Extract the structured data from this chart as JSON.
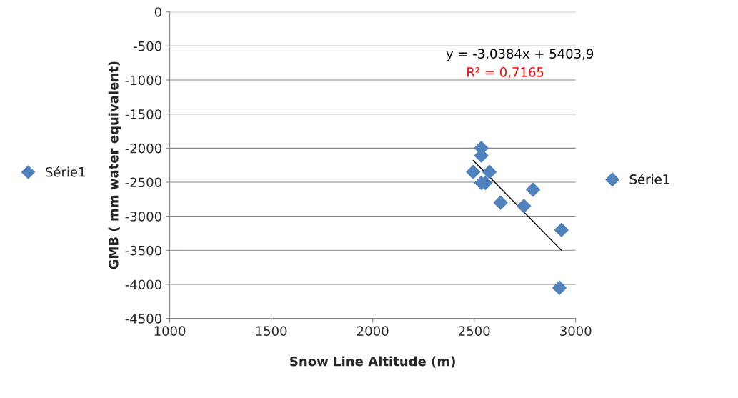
{
  "chart_data": {
    "type": "scatter",
    "xlabel": "Snow Line Altitude (m)",
    "ylabel": "GMB ( mm water equivalent)",
    "xlim": [
      1000,
      3000
    ],
    "xticks": [
      1000,
      1500,
      2000,
      2500,
      3000
    ],
    "ylim": [
      -4500,
      0
    ],
    "yticks": [
      -4500,
      -4000,
      -3500,
      -3000,
      -2500,
      -2000,
      -1500,
      -1000,
      -500,
      0
    ],
    "grid": "y",
    "legend": "right",
    "marker": "diamond",
    "series": [
      {
        "name": "Série1",
        "color": "#4f81bd",
        "x": [
          2535,
          2535,
          2495,
          2575,
          2535,
          2555,
          2790,
          2630,
          2745,
          2930,
          2920
        ],
        "values": [
          -2000,
          -2110,
          -2350,
          -2350,
          -2510,
          -2510,
          -2610,
          -2800,
          -2850,
          -3200,
          -4050
        ]
      },
      {
        "type": "line",
        "color": "#000000",
        "x": [
          2495,
          2930
        ],
        "values": [
          -2180,
          -3500
        ],
        "marker": "none"
      }
    ],
    "annotations": [
      "y = -3,0384x + 5403,9",
      "R² = 0,7165"
    ]
  }
}
